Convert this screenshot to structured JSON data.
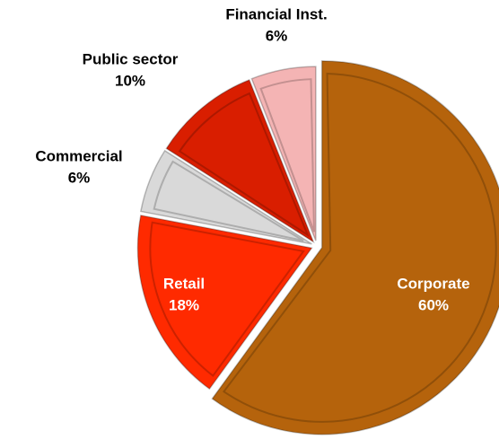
{
  "chart_data": {
    "type": "pie",
    "categories": [
      "Corporate",
      "Retail",
      "Commercial",
      "Public sector",
      "Financial Inst."
    ],
    "values": [
      60,
      18,
      6,
      10,
      6
    ],
    "value_labels": [
      "60%",
      "18%",
      "6%",
      "10%",
      "6%"
    ],
    "colors": [
      "#b5630c",
      "#ff2a00",
      "#d9d9d9",
      "#d91e00",
      "#f4b4b4"
    ]
  }
}
